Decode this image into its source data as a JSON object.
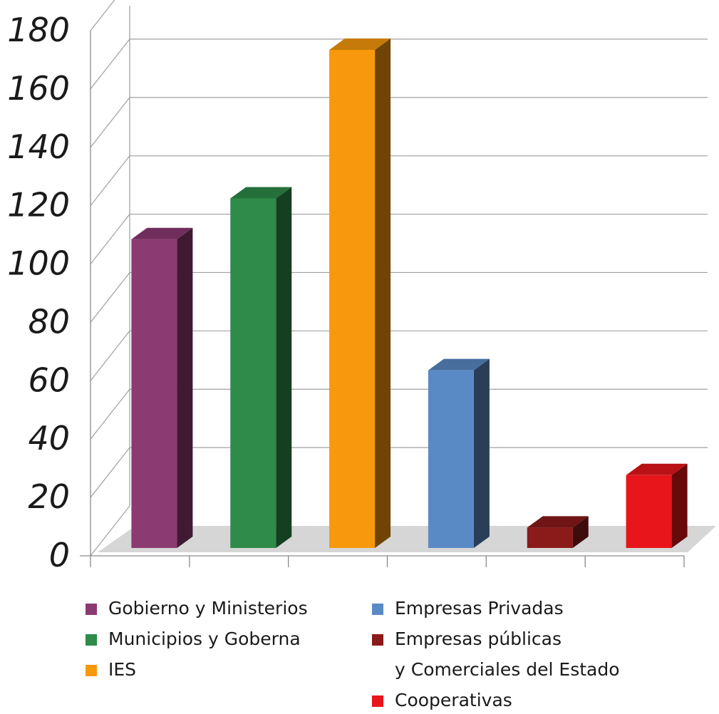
{
  "chart_data": {
    "type": "bar",
    "style": "3d",
    "categories": [
      "Gobierno y Ministerios",
      "Municipios y Goberna",
      "IES",
      "Empresas Privadas",
      "Empresas públicas y Comerciales del Estado",
      "Cooperativas"
    ],
    "values": [
      106,
      120,
      171,
      61,
      7,
      25
    ],
    "colors": [
      "#8B3A72",
      "#2E8B4A",
      "#F7980D",
      "#5A8AC6",
      "#8B1A1A",
      "#E8151B"
    ],
    "yticks": [
      "0",
      "20",
      "40",
      "60",
      "80",
      "100",
      "120",
      "140",
      "160",
      "180"
    ],
    "ylim": [
      0,
      180
    ],
    "grid": true,
    "legend_position": "bottom"
  },
  "legend": {
    "col1": [
      {
        "label": "Gobierno y Ministerios",
        "color": "#8B3A72"
      },
      {
        "label": "Municipios y Goberna",
        "color": "#2E8B4A"
      },
      {
        "label": "IES",
        "color": "#F7980D"
      }
    ],
    "col2": [
      {
        "label": "Empresas Privadas",
        "color": "#5A8AC6"
      },
      {
        "label": "Empresas públicas",
        "label2": "y Comerciales del Estado",
        "color": "#8B1A1A"
      },
      {
        "label": "Cooperativas",
        "color": "#E8151B"
      }
    ]
  }
}
